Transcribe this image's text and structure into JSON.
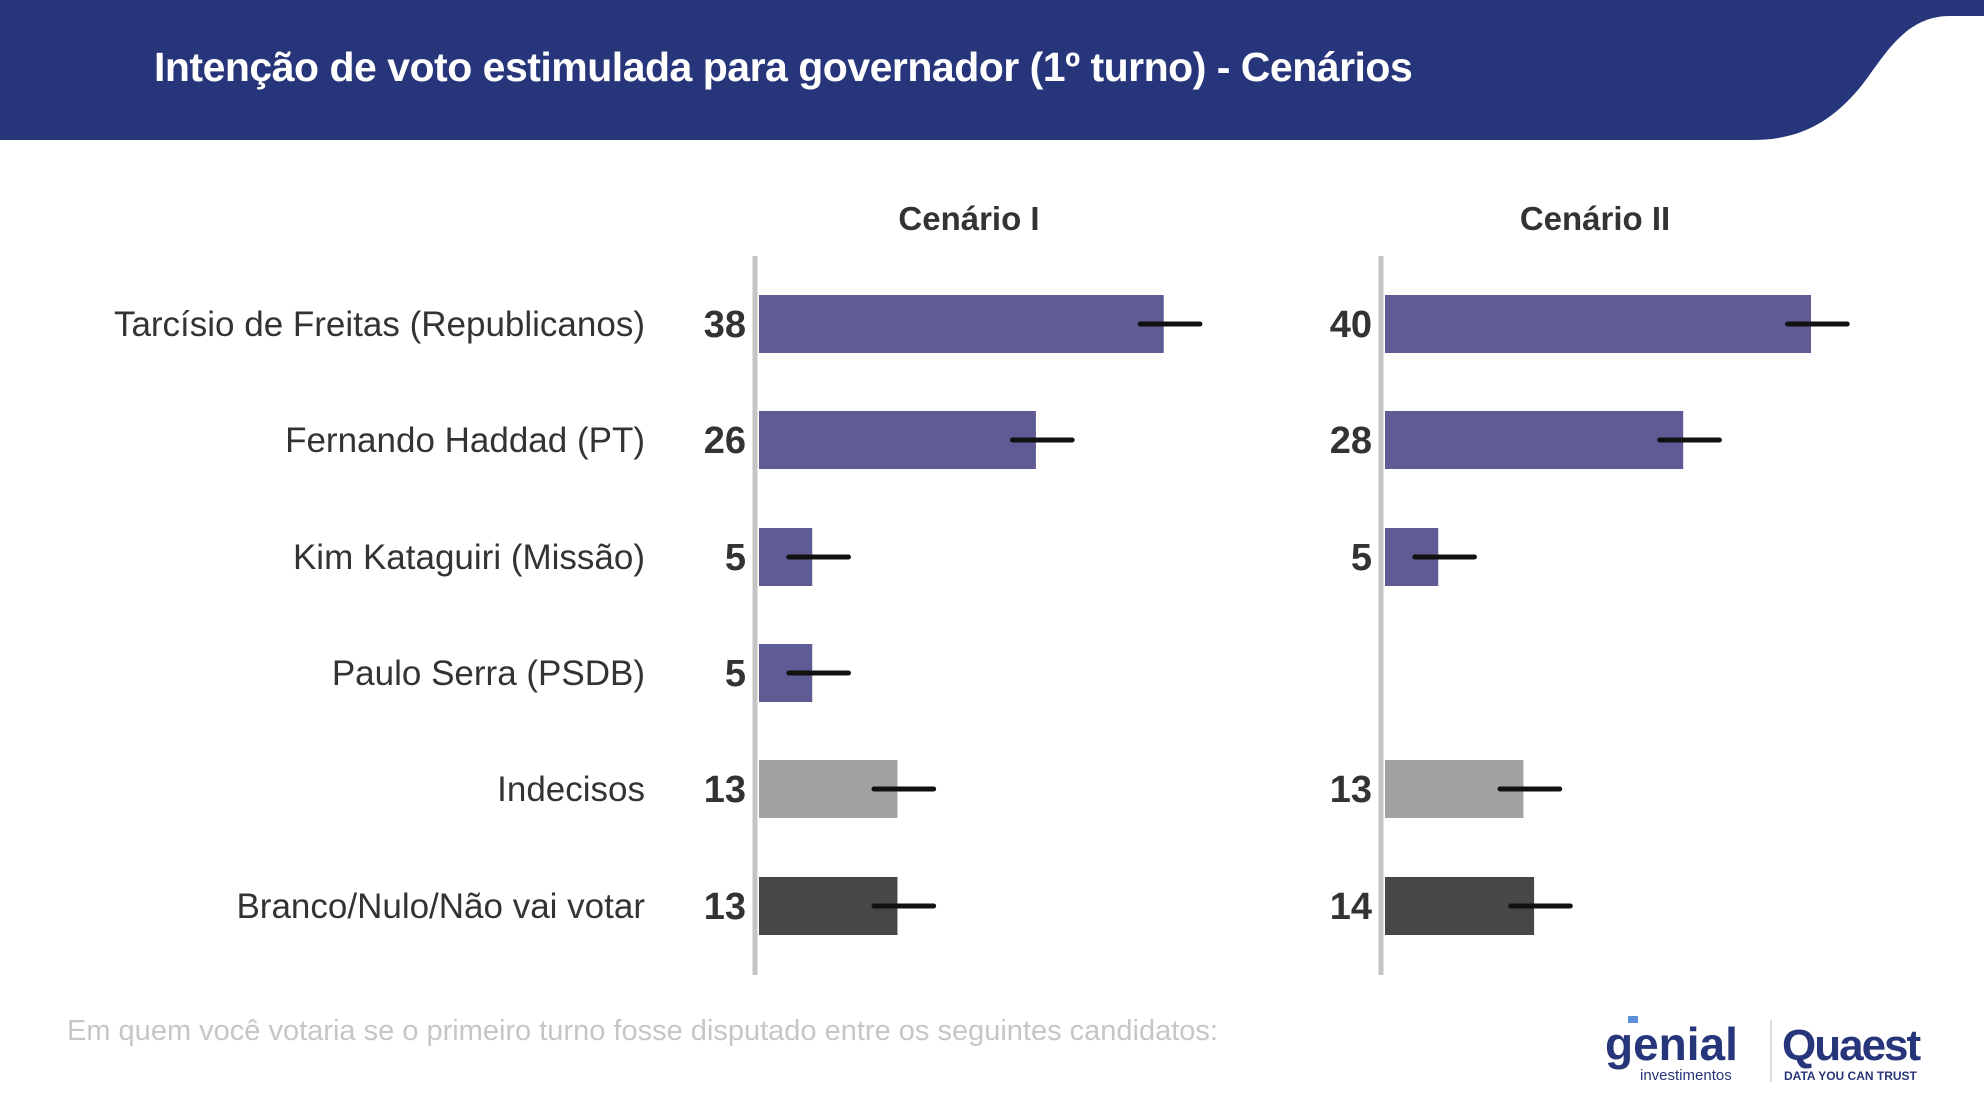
{
  "header": {
    "title": "Intenção de voto estimulada para governador (1º turno) - Cenários",
    "color": "#27367a"
  },
  "chart_data": [
    {
      "type": "bar",
      "orientation": "horizontal",
      "title": "Cenário I",
      "categories": [
        "Tarcísio de Freitas (Republicanos)",
        "Fernando Haddad (PT)",
        "Kim Kataguiri (Missão)",
        "Paulo Serra (PSDB)",
        "Indecisos",
        "Branco/Nulo/Não vai votar"
      ],
      "values": [
        38,
        26,
        5,
        5,
        13,
        13
      ],
      "error_bars": true,
      "colors": [
        "#5f5b94",
        "#5f5b94",
        "#5f5b94",
        "#5f5b94",
        "#a2a2a2",
        "#474747"
      ]
    },
    {
      "type": "bar",
      "orientation": "horizontal",
      "title": "Cenário II",
      "categories": [
        "Tarcísio de Freitas (Republicanos)",
        "Fernando Haddad (PT)",
        "Kim Kataguiri (Missão)",
        "Paulo Serra (PSDB)",
        "Indecisos",
        "Branco/Nulo/Não vai votar"
      ],
      "values": [
        40,
        28,
        5,
        null,
        13,
        14
      ],
      "error_bars": true,
      "colors": [
        "#5f5b94",
        "#5f5b94",
        "#5f5b94",
        "#5f5b94",
        "#a2a2a2",
        "#474747"
      ]
    }
  ],
  "footnote": "Em quem você votaria se o primeiro turno fosse disputado entre os seguintes candidatos:",
  "logos": {
    "genial": "genial",
    "genial_sub": "investimentos",
    "quaest": "Quaest",
    "quaest_sub": "DATA YOU CAN TRUST"
  }
}
